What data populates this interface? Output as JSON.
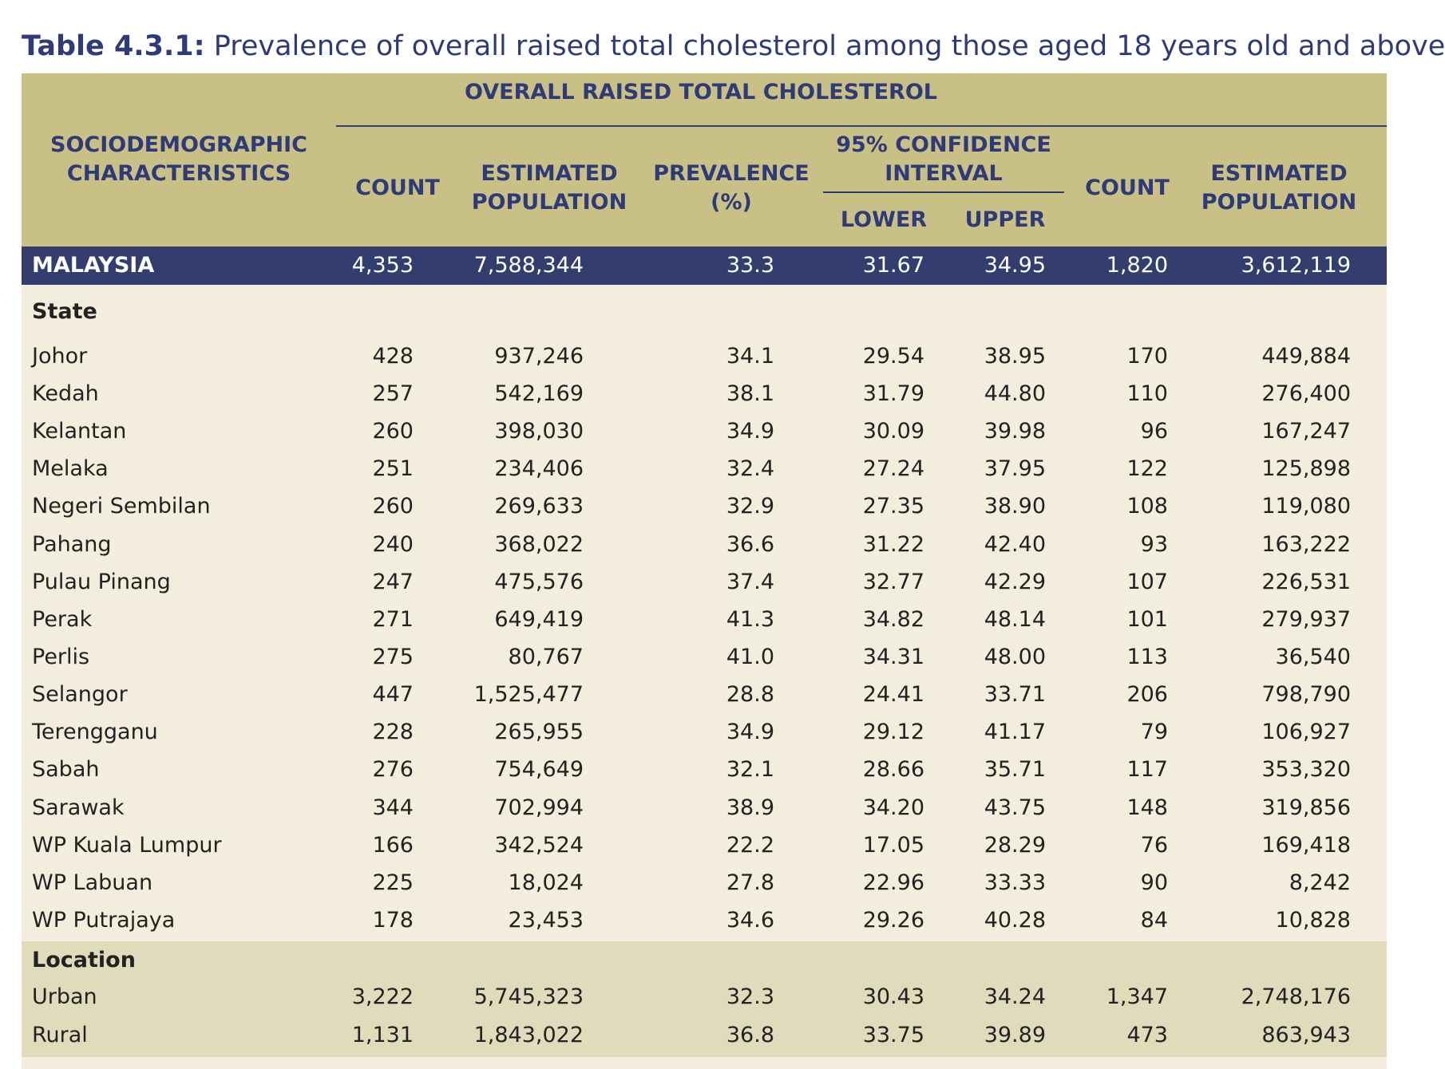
{
  "caption": {
    "prefix": "Table 4.3.1:",
    "text": "Prevalence of overall raised total cholesterol among those aged 18 years old and above"
  },
  "header": {
    "group_title": "OVERALL RAISED TOTAL CHOLESTEROL",
    "characteristics": [
      "SOCIODEMOGRAPHIC",
      "CHARACTERISTICS"
    ],
    "count": "COUNT",
    "estimated_population": [
      "ESTIMATED",
      "POPULATION"
    ],
    "prevalence": [
      "PREVALENCE",
      "(%)"
    ],
    "ci": [
      "95% CONFIDENCE",
      "INTERVAL"
    ],
    "lower": "LOWER",
    "upper": "UPPER",
    "count2": "COUNT",
    "estimated_population2": [
      "ESTIMATED",
      "POPULATION"
    ]
  },
  "malaysia": {
    "label": "MALAYSIA",
    "values": [
      "4,353",
      "7,588,344",
      "33.3",
      "31.67",
      "34.95",
      "1,820",
      "3,612,119"
    ]
  },
  "sections": {
    "state": "State",
    "location": "Location"
  },
  "rows": {
    "johor": {
      "label": "Johor",
      "values": [
        "428",
        "937,246",
        "34.1",
        "29.54",
        "38.95",
        "170",
        "449,884"
      ]
    },
    "kedah": {
      "label": "Kedah",
      "values": [
        "257",
        "542,169",
        "38.1",
        "31.79",
        "44.80",
        "110",
        "276,400"
      ]
    },
    "kelantan": {
      "label": "Kelantan",
      "values": [
        "260",
        "398,030",
        "34.9",
        "30.09",
        "39.98",
        "96",
        "167,247"
      ]
    },
    "melaka": {
      "label": "Melaka",
      "values": [
        "251",
        "234,406",
        "32.4",
        "27.24",
        "37.95",
        "122",
        "125,898"
      ]
    },
    "ns": {
      "label": "Negeri Sembilan",
      "values": [
        "260",
        "269,633",
        "32.9",
        "27.35",
        "38.90",
        "108",
        "119,080"
      ]
    },
    "pahang": {
      "label": "Pahang",
      "values": [
        "240",
        "368,022",
        "36.6",
        "31.22",
        "42.40",
        "93",
        "163,222"
      ]
    },
    "penang": {
      "label": "Pulau Pinang",
      "values": [
        "247",
        "475,576",
        "37.4",
        "32.77",
        "42.29",
        "107",
        "226,531"
      ]
    },
    "perak": {
      "label": "Perak",
      "values": [
        "271",
        "649,419",
        "41.3",
        "34.82",
        "48.14",
        "101",
        "279,937"
      ]
    },
    "perlis": {
      "label": "Perlis",
      "values": [
        "275",
        "80,767",
        "41.0",
        "34.31",
        "48.00",
        "113",
        "36,540"
      ]
    },
    "selangor": {
      "label": "Selangor",
      "values": [
        "447",
        "1,525,477",
        "28.8",
        "24.41",
        "33.71",
        "206",
        "798,790"
      ]
    },
    "terengganu": {
      "label": "Terengganu",
      "values": [
        "228",
        "265,955",
        "34.9",
        "29.12",
        "41.17",
        "79",
        "106,927"
      ]
    },
    "sabah": {
      "label": "Sabah",
      "values": [
        "276",
        "754,649",
        "32.1",
        "28.66",
        "35.71",
        "117",
        "353,320"
      ]
    },
    "sarawak": {
      "label": "Sarawak",
      "values": [
        "344",
        "702,994",
        "38.9",
        "34.20",
        "43.75",
        "148",
        "319,856"
      ]
    },
    "kl": {
      "label": "WP Kuala Lumpur",
      "values": [
        "166",
        "342,524",
        "22.2",
        "17.05",
        "28.29",
        "76",
        "169,418"
      ]
    },
    "labuan": {
      "label": "WP Labuan",
      "values": [
        "225",
        "18,024",
        "27.8",
        "22.96",
        "33.33",
        "90",
        "8,242"
      ]
    },
    "putrajaya": {
      "label": "WP Putrajaya",
      "values": [
        "178",
        "23,453",
        "34.6",
        "29.26",
        "40.28",
        "84",
        "10,828"
      ]
    },
    "urban": {
      "label": "Urban",
      "values": [
        "3,222",
        "5,745,323",
        "32.3",
        "30.43",
        "34.24",
        "1,347",
        "2,748,176"
      ]
    },
    "rural": {
      "label": "Rural",
      "values": [
        "1,131",
        "1,843,022",
        "36.8",
        "33.75",
        "39.89",
        "473",
        "863,943"
      ]
    }
  },
  "colors": {
    "header_bg": "#c8c084",
    "header_text": "#2f3a78",
    "malaysia_bg": "#333e6e",
    "body_bg": "#f2eddc",
    "band_bg": "#e0dbbb"
  }
}
